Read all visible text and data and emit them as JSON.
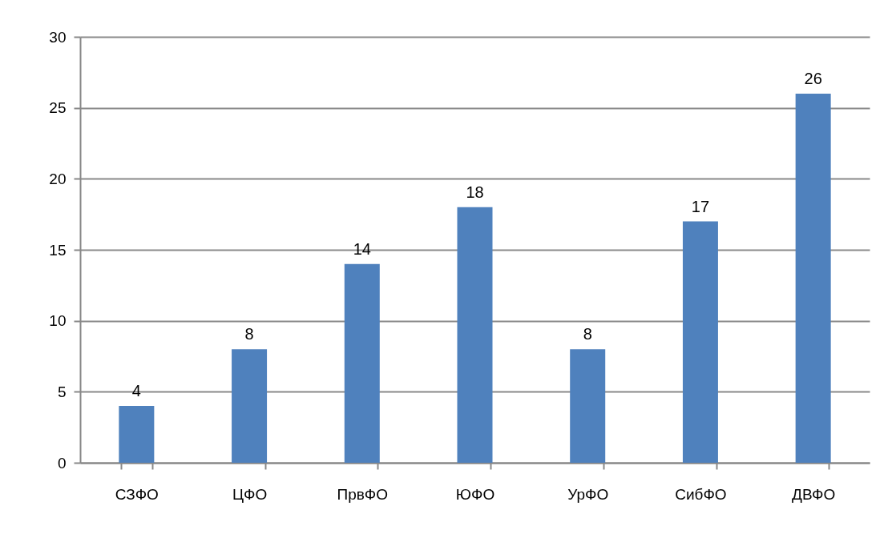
{
  "chart_data": {
    "type": "bar",
    "categories": [
      "СЗФО",
      "ЦФО",
      "ПрвФО",
      "ЮФО",
      "УрФО",
      "СибФО",
      "ДВФО"
    ],
    "values": [
      4,
      8,
      14,
      18,
      8,
      17,
      26
    ],
    "color": "#4f81bd",
    "ylim": [
      0,
      30
    ],
    "yticks": [
      0,
      5,
      10,
      15,
      20,
      25,
      30
    ],
    "grid": "y",
    "data_labels": true
  }
}
